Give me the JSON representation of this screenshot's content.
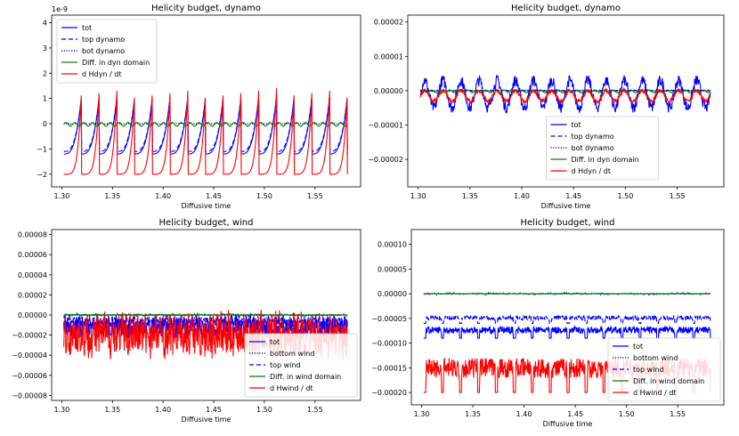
{
  "chart_data": [
    {
      "type": "line",
      "title": "Helicity budget, dynamo",
      "xlabel": "Diffusive time",
      "ylabel": "",
      "offset_text": "1e-9",
      "xlim": [
        1.29,
        1.595
      ],
      "ylim": [
        -2.5,
        4.3
      ],
      "xticks": [
        "1.30",
        "1.35",
        "1.40",
        "1.45",
        "1.50",
        "1.55"
      ],
      "yticks": [
        "−2",
        "−1",
        "0",
        "1",
        "2",
        "3",
        "4"
      ],
      "ytick_values": [
        -2,
        -1,
        0,
        1,
        2,
        3,
        4
      ],
      "legend_position": "upper-left",
      "signal": {
        "kind": "periodic",
        "period": 0.0175,
        "start": 1.302,
        "end": 1.582
      },
      "series": [
        {
          "name": "tot",
          "color": "#0000ff",
          "style": "solid",
          "profile": "sawtooth",
          "amp": 2.3,
          "min": -1.2
        },
        {
          "name": "top dynamo",
          "color": "#0000ff",
          "style": "dashed",
          "profile": "sawtooth",
          "amp": 2.2,
          "min": -1.1
        },
        {
          "name": "bot dynamo",
          "color": "#000080",
          "style": "dotted",
          "profile": "flat",
          "amp": 0.02,
          "min": 0
        },
        {
          "name": "Diff. in dyn domain",
          "color": "#008000",
          "style": "solid",
          "profile": "small",
          "amp": 0.15,
          "min": -0.1
        },
        {
          "name": "d Hdyn / dt",
          "color": "#ff0000",
          "style": "solid",
          "profile": "spike",
          "amp": 3.4,
          "min": -2.0
        }
      ]
    },
    {
      "type": "line",
      "title": "Helicity budget, dynamo",
      "xlabel": "Diffusive time",
      "ylabel": "",
      "xlim": [
        1.29,
        1.595
      ],
      "ylim": [
        -2.8e-05,
        2.2e-05
      ],
      "xticks": [
        "1.30",
        "1.35",
        "1.40",
        "1.45",
        "1.50",
        "1.55"
      ],
      "yticks": [
        "−0.00002",
        "−0.00001",
        "0.00000",
        "0.00001",
        "0.00002"
      ],
      "ytick_values": [
        -2e-05,
        -1e-05,
        0,
        1e-05,
        2e-05
      ],
      "legend_position": "lower-center",
      "signal": {
        "kind": "noisy",
        "period": 0.0175,
        "start": 1.302,
        "end": 1.582
      },
      "series": [
        {
          "name": "tot",
          "color": "#0000ff",
          "style": "solid",
          "profile": "osc",
          "amp": 8e-06,
          "min": -5e-06
        },
        {
          "name": "top dynamo",
          "color": "#0000ff",
          "style": "dashed",
          "profile": "flat",
          "amp": 3e-07,
          "min": 0
        },
        {
          "name": "bot dynamo",
          "color": "#000080",
          "style": "dotted",
          "profile": "flat",
          "amp": 3e-07,
          "min": 0
        },
        {
          "name": "Diff. in dyn domain",
          "color": "#008000",
          "style": "solid",
          "profile": "small",
          "amp": 8e-07,
          "min": -6e-07
        },
        {
          "name": "d Hdyn / dt",
          "color": "#ff0000",
          "style": "solid",
          "profile": "osc",
          "amp": 3e-06,
          "min": -3e-06
        }
      ]
    },
    {
      "type": "line",
      "title": "Helicity budget, wind",
      "xlabel": "Diffusive time",
      "ylabel": "",
      "xlim": [
        1.29,
        1.595
      ],
      "ylim": [
        -8.5e-05,
        8.5e-05
      ],
      "xticks": [
        "1.30",
        "1.35",
        "1.40",
        "1.45",
        "1.50",
        "1.55"
      ],
      "yticks": [
        "−0.00008",
        "−0.00006",
        "−0.00004",
        "−0.00002",
        "0.00000",
        "0.00002",
        "0.00004",
        "0.00006",
        "0.00008"
      ],
      "ytick_values": [
        -8e-05,
        -6e-05,
        -4e-05,
        -2e-05,
        0,
        2e-05,
        4e-05,
        6e-05,
        8e-05
      ],
      "legend_position": "lower-right",
      "signal": {
        "kind": "noisy",
        "period": 0.009,
        "start": 1.302,
        "end": 1.582
      },
      "series": [
        {
          "name": "tot",
          "color": "#0000ff",
          "style": "solid",
          "profile": "noise",
          "amp": 2.2e-05,
          "min": -2.2e-05
        },
        {
          "name": "bottom wind",
          "color": "#000080",
          "style": "dotted",
          "profile": "flat",
          "amp": 2e-06,
          "min": 0
        },
        {
          "name": "top wind",
          "color": "#0000ff",
          "style": "dashed",
          "profile": "noise",
          "amp": 1.2e-05,
          "min": -1.2e-05
        },
        {
          "name": "Diff. in wind domain",
          "color": "#008000",
          "style": "solid",
          "profile": "flat",
          "amp": 1e-06,
          "min": 0
        },
        {
          "name": "d Hwind / dt",
          "color": "#ff0000",
          "style": "solid",
          "profile": "noise",
          "amp": 4.5e-05,
          "min": -4e-05
        }
      ]
    },
    {
      "type": "line",
      "title": "Helicity budget, wind",
      "xlabel": "Diffusive time",
      "ylabel": "",
      "xlim": [
        1.29,
        1.595
      ],
      "ylim": [
        -0.000225,
        0.00013
      ],
      "xticks": [
        "1.30",
        "1.35",
        "1.40",
        "1.45",
        "1.50",
        "1.55"
      ],
      "yticks": [
        "−0.00020",
        "−0.00015",
        "−0.00010",
        "−0.00005",
        "0.00000",
        "0.00005",
        "0.00010"
      ],
      "ytick_values": [
        -0.0002,
        -0.00015,
        -0.0001,
        -5e-05,
        0,
        5e-05,
        0.0001
      ],
      "legend_position": "lower-right",
      "signal": {
        "kind": "noisy",
        "period": 0.0175,
        "start": 1.302,
        "end": 1.582
      },
      "series": [
        {
          "name": "tot",
          "color": "#0000ff",
          "style": "solid",
          "profile": "dip",
          "amp": 3e-05,
          "min": -9e-05
        },
        {
          "name": "bottom wind",
          "color": "#000080",
          "style": "dotted",
          "profile": "flat",
          "amp": 3e-06,
          "min": 0
        },
        {
          "name": "top wind",
          "color": "#0000ff",
          "style": "dashed",
          "profile": "dip",
          "amp": 2e-05,
          "min": -6e-05
        },
        {
          "name": "Diff. in wind domain",
          "color": "#008000",
          "style": "solid",
          "profile": "flat",
          "amp": 1e-06,
          "min": 0
        },
        {
          "name": "d Hwind / dt",
          "color": "#ff0000",
          "style": "solid",
          "profile": "dip",
          "amp": 9e-05,
          "min": -0.0002
        }
      ]
    }
  ]
}
